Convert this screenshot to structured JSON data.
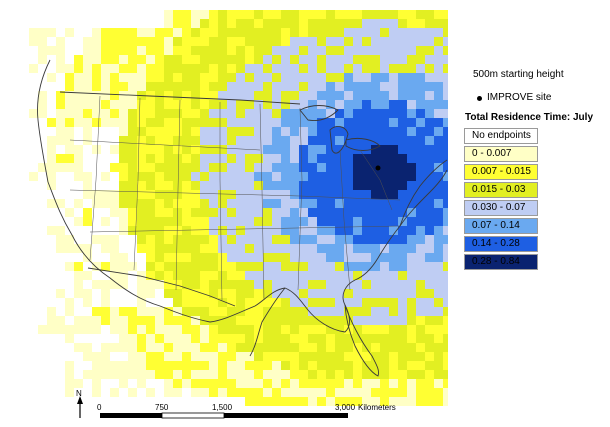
{
  "panel": {
    "height_label": "500m starting height",
    "site_label": "IMPROVE site",
    "legend_title": "Total Residence Time: July"
  },
  "legend": [
    {
      "label": "No endpoints",
      "color": "#ffffff"
    },
    {
      "label": "0 - 0.007",
      "color": "#ffffc6"
    },
    {
      "label": "0.007 - 0.015",
      "color": "#ffff33"
    },
    {
      "label": "0.015 - 0.03",
      "color": "#e2ef22"
    },
    {
      "label": "0.030 - 0.07",
      "color": "#bfcdf3"
    },
    {
      "label": "0.07 - 0.14",
      "color": "#6aa9f0"
    },
    {
      "label": "0.14 - 0.28",
      "color": "#1e5fe3"
    },
    {
      "label": "0.28 - 0.84",
      "color": "#0a2370"
    }
  ],
  "scale": {
    "ticks": [
      "0",
      "750",
      "1,500",
      "3,000"
    ],
    "unit": "Kilometers"
  },
  "north_label": "N"
}
